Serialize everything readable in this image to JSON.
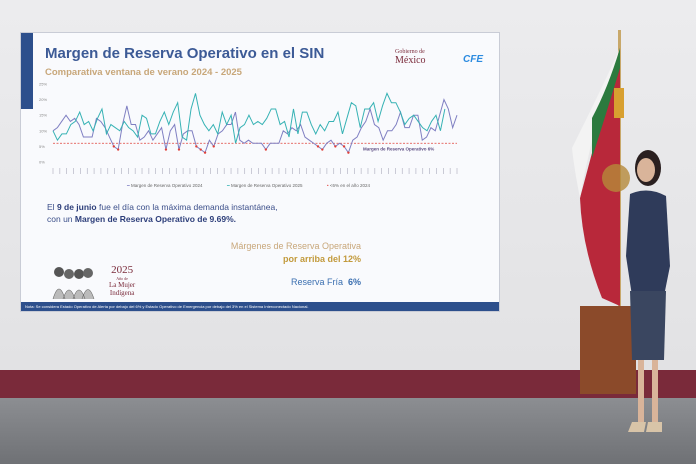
{
  "slide": {
    "title": "Margen de Reserva Operativo en el SIN",
    "subtitle": "Comparativa ventana de verano 2024 - 2025",
    "logo_gobierno_small": "Gobierno de",
    "logo_gobierno": "México",
    "logo_cfe": "CFE",
    "text_line1_bold": "9 de junio",
    "text_line1_pre": "El",
    "text_line1_post": "fue el día con la máxima demanda instantánea,",
    "text_line2_pre": "con un",
    "text_line2_bold": "Margen de Reserva Operativo de 9.69%.",
    "margins_line1": "Márgenes de Reserva Operativa",
    "margins_line2": "por arriba del 12%",
    "reserva_label": "Reserva Fría",
    "reserva_value": "6%",
    "year_logo": "2025",
    "year_logo_small": "Año de",
    "year_logo_line1": "La Mujer",
    "year_logo_line2": "Indígena",
    "footnote": "Nota: Se considera Estado Operativo de Alerta por debajo del 6% y Estado Operativo de Emergencia por debajo del 3% en el Sistema Interconectado Nacional."
  },
  "chart_data": {
    "type": "line",
    "title": "Margen de Reserva Operativo en el SIN",
    "subtitle": "Comparativa ventana de verano 2024 - 2025",
    "ylim": [
      0,
      25
    ],
    "yticks": [
      "0%",
      "5%",
      "10%",
      "15%",
      "20%",
      "25%"
    ],
    "threshold": {
      "value": 6,
      "label": "Margen de Reserva Operativo 6%",
      "color": "#e0403a"
    },
    "legend_position": "bottom",
    "grid": false,
    "series": [
      {
        "name": "Margen de Reserva Operativo 2024",
        "color": "#7f7fc2",
        "values": [
          10,
          11,
          13,
          15,
          13,
          14,
          12,
          8,
          8,
          8,
          14,
          13,
          11,
          8,
          5,
          4,
          12,
          18,
          12,
          12,
          7,
          8,
          10,
          7,
          9,
          11,
          4,
          10,
          12,
          4,
          9,
          10,
          10,
          5,
          4,
          3,
          7,
          5,
          9,
          10,
          12,
          12,
          16,
          7,
          6,
          7,
          6,
          6,
          6,
          4,
          6,
          6,
          6,
          10,
          9,
          11,
          10,
          12,
          8,
          7,
          6,
          5,
          4,
          6,
          7,
          5,
          6,
          5,
          3,
          7,
          8,
          11,
          13,
          17,
          12,
          11,
          7,
          10,
          10,
          12,
          16,
          11,
          11,
          15,
          15,
          7,
          8,
          11,
          10,
          15,
          20,
          17,
          11,
          15
        ]
      },
      {
        "name": "Margen de Reserva Operativo 2025",
        "color": "#36b2b4",
        "values": [
          10,
          7,
          9,
          9,
          12,
          13,
          16,
          12,
          13,
          10,
          14,
          17,
          9,
          12,
          11,
          10,
          13,
          11,
          10,
          8,
          15,
          14,
          9,
          9,
          13,
          16,
          12,
          16,
          19,
          8,
          7,
          17,
          22,
          15,
          12,
          10,
          12,
          9,
          16,
          12,
          15,
          6,
          11,
          12,
          15,
          12,
          13,
          12,
          14,
          17,
          17,
          12,
          13,
          8,
          17,
          9,
          16,
          16,
          12,
          9,
          12,
          10,
          13,
          13,
          16,
          9,
          14,
          19,
          18,
          11,
          17,
          17,
          19,
          13,
          18,
          22,
          19,
          19,
          16,
          12,
          14,
          15,
          13,
          11,
          10,
          13,
          15,
          10,
          17
        ]
      }
    ],
    "marker_series": {
      "name": "<6% en el año 2024",
      "color": "#e0403a"
    }
  }
}
